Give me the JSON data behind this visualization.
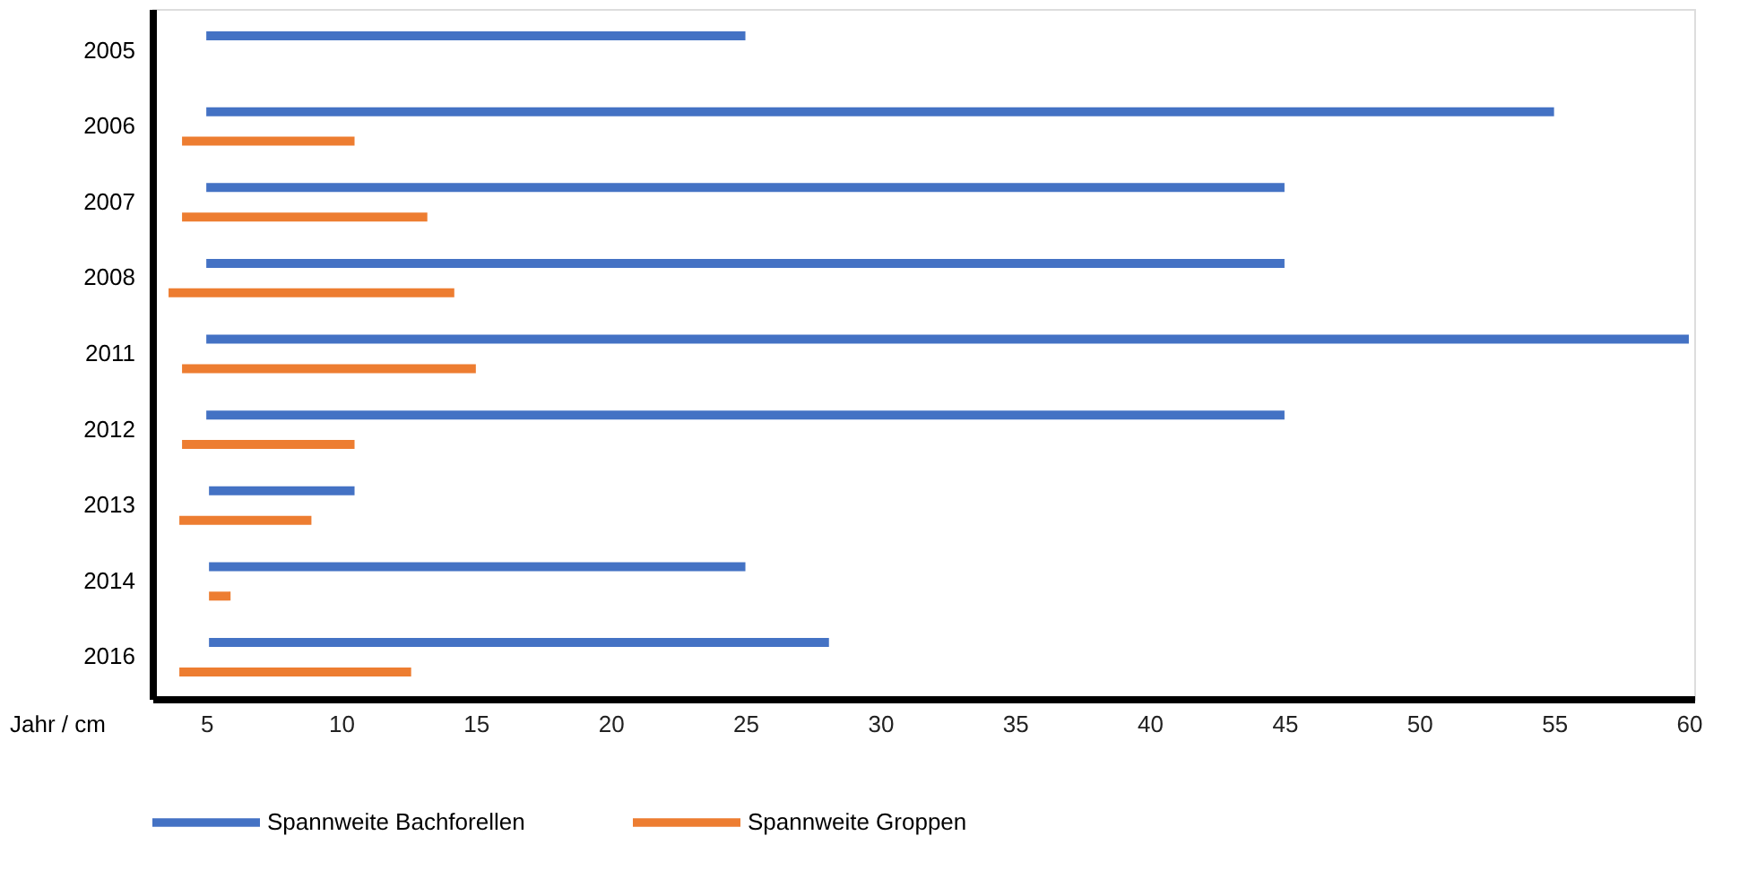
{
  "chart_data": {
    "type": "bar",
    "orientation": "horizontal",
    "xlabel": "Jahr / cm",
    "categories": [
      "2005",
      "2006",
      "2007",
      "2008",
      "2011",
      "2012",
      "2013",
      "2014",
      "2016"
    ],
    "series": [
      {
        "name": "Spannweite Bachforellen",
        "color": "#4472c4",
        "base": [
          5,
          5,
          5,
          5,
          5,
          5,
          5.1,
          5.1,
          5.1
        ],
        "values": [
          20,
          50,
          40,
          40,
          55,
          40,
          5.4,
          19.9,
          23
        ]
      },
      {
        "name": "Spannweite Groppen",
        "color": "#ed7d31",
        "base": [
          null,
          4.1,
          4.1,
          3.6,
          4.1,
          4.1,
          4.0,
          5.1,
          4.0
        ],
        "values": [
          null,
          6.4,
          9.1,
          10.6,
          10.9,
          6.4,
          4.9,
          0.8,
          8.6
        ]
      }
    ],
    "xlim": [
      3,
      60.2
    ],
    "xticks": [
      5,
      10,
      15,
      20,
      25,
      30,
      35,
      40,
      45,
      50,
      55,
      60
    ],
    "grid": false,
    "legend": "bottom"
  }
}
